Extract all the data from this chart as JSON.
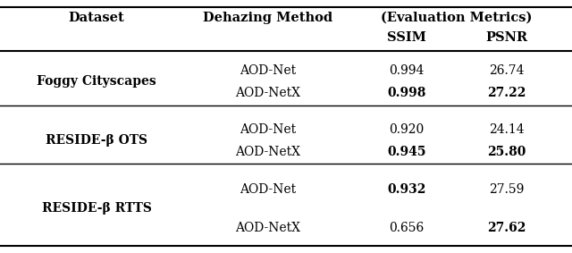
{
  "rows": [
    {
      "dataset": "Foggy Cityscapes",
      "dataset_bold": true,
      "method": "AOD-Net",
      "ssim": "0.994",
      "psnr": "26.74",
      "ssim_bold": false,
      "psnr_bold": false
    },
    {
      "dataset": "",
      "dataset_bold": false,
      "method": "AOD-NetX",
      "ssim": "0.998",
      "psnr": "27.22",
      "ssim_bold": true,
      "psnr_bold": true
    },
    {
      "dataset": "RESIDE-β OTS",
      "dataset_bold": true,
      "method": "AOD-Net",
      "ssim": "0.920",
      "psnr": "24.14",
      "ssim_bold": false,
      "psnr_bold": false
    },
    {
      "dataset": "",
      "dataset_bold": false,
      "method": "AOD-NetX",
      "ssim": "0.945",
      "psnr": "25.80",
      "ssim_bold": true,
      "psnr_bold": true
    },
    {
      "dataset": "RESIDE-β RTTS",
      "dataset_bold": true,
      "method": "AOD-Net",
      "ssim": "0.932",
      "psnr": "27.59",
      "ssim_bold": true,
      "psnr_bold": false
    },
    {
      "dataset": "",
      "dataset_bold": false,
      "method": "AOD-NetX",
      "ssim": "0.656",
      "psnr": "27.62",
      "ssim_bold": false,
      "psnr_bold": true
    }
  ],
  "bg_color": "#ffffff",
  "header_fontsize": 10.5,
  "cell_fontsize": 10.0,
  "figsize": [
    6.4,
    2.83
  ],
  "dpi": 100
}
